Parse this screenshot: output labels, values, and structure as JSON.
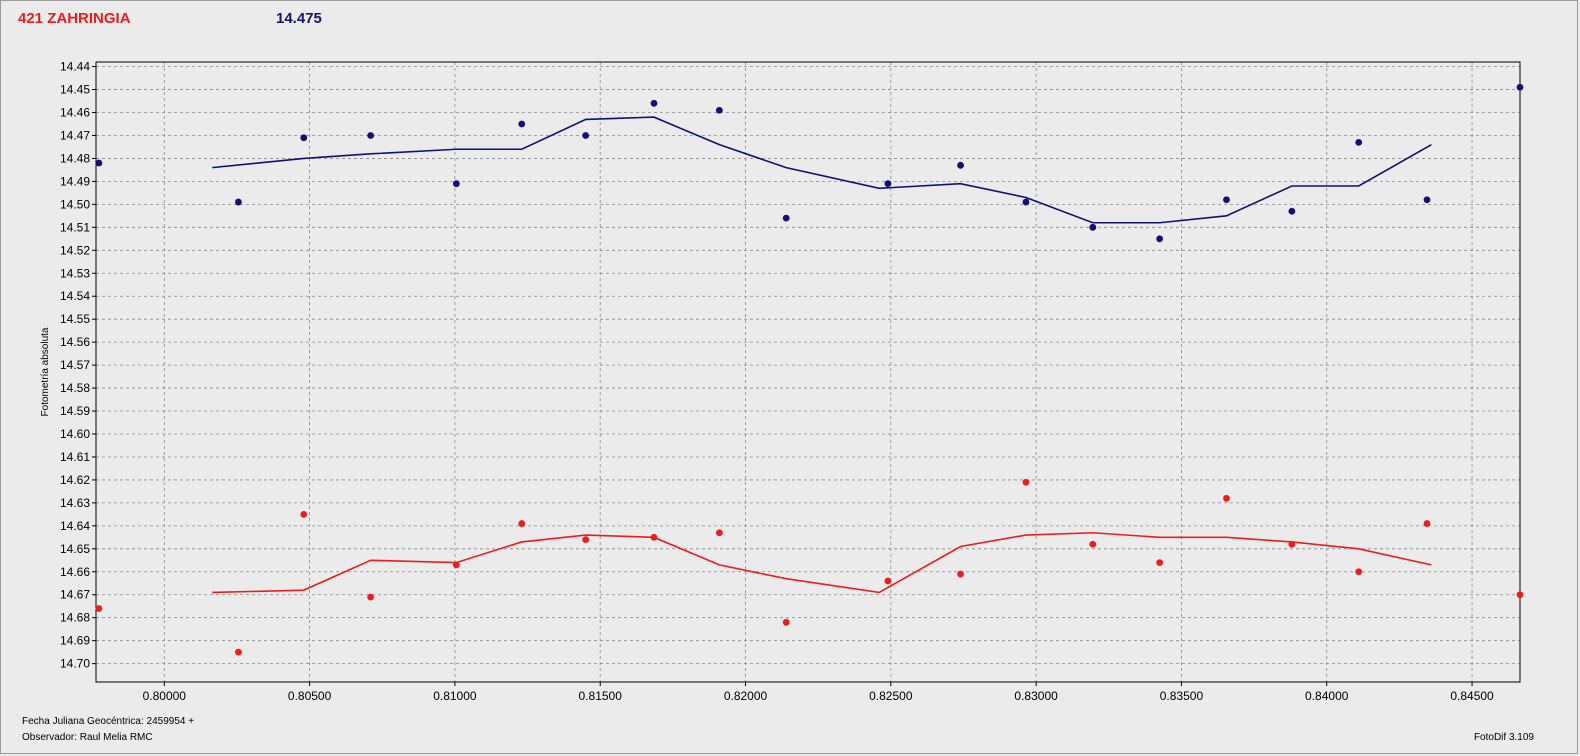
{
  "header": {
    "object_name": "421 ZAHRINGIA",
    "mean_magnitude": "14.475"
  },
  "footer": {
    "date_label": "Fecha Juliana Geocéntrica: 2459954 +",
    "observer_label": "Observador: Raul Melia RMC",
    "software_label": "FotoDif 3.109"
  },
  "colors": {
    "series_blue": "#10107a",
    "series_red": "#ee1c1c",
    "grid": "#8a8a8a",
    "plot_bg": "#ebebeb"
  },
  "chart_data": {
    "type": "scatter",
    "title": "",
    "xlabel": "",
    "ylabel": "Fotometría absoluta",
    "xlim": [
      0.79765,
      0.84665
    ],
    "ylim": [
      14.438,
      14.708
    ],
    "y_inverted": true,
    "grid": true,
    "x_ticks": [
      "0.80000",
      "0.80500",
      "0.81000",
      "0.81500",
      "0.82000",
      "0.82500",
      "0.83000",
      "0.83500",
      "0.84000",
      "0.84500"
    ],
    "x_tick_values": [
      0.8,
      0.805,
      0.81,
      0.815,
      0.82,
      0.825,
      0.83,
      0.835,
      0.84,
      0.845
    ],
    "y_ticks": [
      "14.44",
      "14.45",
      "14.46",
      "14.47",
      "14.48",
      "14.49",
      "14.50",
      "14.51",
      "14.52",
      "14.53",
      "14.54",
      "14.55",
      "14.56",
      "14.57",
      "14.58",
      "14.59",
      "14.60",
      "14.61",
      "14.62",
      "14.63",
      "14.64",
      "14.65",
      "14.66",
      "14.67",
      "14.68",
      "14.69",
      "14.70"
    ],
    "y_tick_values": [
      14.44,
      14.45,
      14.46,
      14.47,
      14.48,
      14.49,
      14.5,
      14.51,
      14.52,
      14.53,
      14.54,
      14.55,
      14.56,
      14.57,
      14.58,
      14.59,
      14.6,
      14.61,
      14.62,
      14.63,
      14.64,
      14.65,
      14.66,
      14.67,
      14.68,
      14.69,
      14.7
    ],
    "series": [
      {
        "color": "#10107a",
        "points": {
          "x": [
            0.79775,
            0.80255,
            0.8048,
            0.8071,
            0.81005,
            0.8123,
            0.8145,
            0.81685,
            0.8191,
            0.8214,
            0.8249,
            0.8274,
            0.82965,
            0.83195,
            0.83425,
            0.83655,
            0.8388,
            0.8411,
            0.84345,
            0.84665
          ],
          "y": [
            14.482,
            14.499,
            14.471,
            14.47,
            14.491,
            14.465,
            14.47,
            14.456,
            14.459,
            14.506,
            14.491,
            14.483,
            14.499,
            14.51,
            14.515,
            14.498,
            14.503,
            14.473,
            14.498,
            14.449
          ]
        },
        "line": {
          "x": [
            0.80165,
            0.8048,
            0.8071,
            0.81005,
            0.8123,
            0.8145,
            0.81685,
            0.8191,
            0.8214,
            0.8246,
            0.8274,
            0.82965,
            0.83195,
            0.83425,
            0.83655,
            0.8388,
            0.8411,
            0.8436
          ],
          "y": [
            14.484,
            14.48,
            14.478,
            14.476,
            14.476,
            14.463,
            14.462,
            14.474,
            14.484,
            14.493,
            14.491,
            14.497,
            14.508,
            14.508,
            14.505,
            14.492,
            14.492,
            14.474
          ]
        }
      },
      {
        "color": "#ee1c1c",
        "points": {
          "x": [
            0.79775,
            0.80255,
            0.8048,
            0.8071,
            0.81005,
            0.8123,
            0.8145,
            0.81685,
            0.8191,
            0.8214,
            0.8249,
            0.8274,
            0.82965,
            0.83195,
            0.83425,
            0.83655,
            0.8388,
            0.8411,
            0.84345,
            0.84665
          ],
          "y": [
            14.676,
            14.695,
            14.635,
            14.671,
            14.657,
            14.639,
            14.646,
            14.645,
            14.643,
            14.682,
            14.664,
            14.661,
            14.621,
            14.648,
            14.656,
            14.628,
            14.648,
            14.66,
            14.639,
            14.67
          ]
        },
        "line": {
          "x": [
            0.80165,
            0.8048,
            0.8071,
            0.81005,
            0.8123,
            0.8145,
            0.81685,
            0.8191,
            0.8214,
            0.8246,
            0.8274,
            0.82965,
            0.83195,
            0.83425,
            0.83655,
            0.8388,
            0.8411,
            0.8436
          ],
          "y": [
            14.669,
            14.668,
            14.655,
            14.656,
            14.647,
            14.644,
            14.645,
            14.657,
            14.663,
            14.669,
            14.649,
            14.644,
            14.643,
            14.645,
            14.645,
            14.647,
            14.65,
            14.657
          ]
        }
      }
    ]
  }
}
